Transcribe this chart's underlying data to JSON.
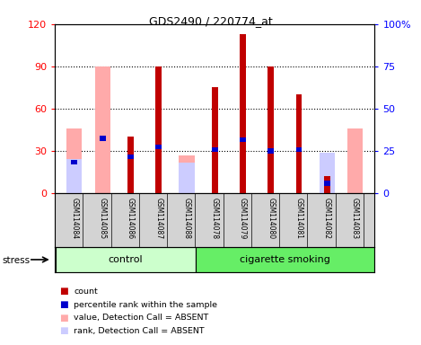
{
  "title": "GDS2490 / 220774_at",
  "samples": [
    "GSM114084",
    "GSM114085",
    "GSM114086",
    "GSM114087",
    "GSM114088",
    "GSM114078",
    "GSM114079",
    "GSM114080",
    "GSM114081",
    "GSM114082",
    "GSM114083"
  ],
  "groups": [
    "control",
    "control",
    "control",
    "control",
    "control",
    "cigarette smoking",
    "cigarette smoking",
    "cigarette smoking",
    "cigarette smoking",
    "cigarette smoking",
    "cigarette smoking"
  ],
  "absent_value": [
    46,
    90,
    null,
    null,
    27,
    null,
    null,
    null,
    null,
    null,
    46
  ],
  "absent_rank": [
    24,
    null,
    null,
    null,
    22,
    null,
    null,
    null,
    null,
    29,
    null
  ],
  "count": [
    null,
    null,
    40,
    90,
    null,
    75,
    113,
    90,
    70,
    12,
    null
  ],
  "percentile_rank": [
    22,
    39,
    26,
    33,
    null,
    31,
    38,
    30,
    31,
    7,
    null
  ],
  "ylim_left": [
    0,
    120
  ],
  "ylim_right": [
    0,
    100
  ],
  "yticks_left": [
    0,
    30,
    60,
    90,
    120
  ],
  "yticks_right": [
    0,
    25,
    50,
    75,
    100
  ],
  "color_count": "#c00000",
  "color_percentile": "#0000cc",
  "color_absent_value": "#ffaaaa",
  "color_absent_rank": "#ccccff",
  "bg_tick_area": "#d3d3d3",
  "bg_control": "#ccffcc",
  "bg_smoking": "#66ee66",
  "control_group_label": "control",
  "smoking_group_label": "cigarette smoking",
  "stress_label": "stress",
  "legend_items": [
    "count",
    "percentile rank within the sample",
    "value, Detection Call = ABSENT",
    "rank, Detection Call = ABSENT"
  ]
}
